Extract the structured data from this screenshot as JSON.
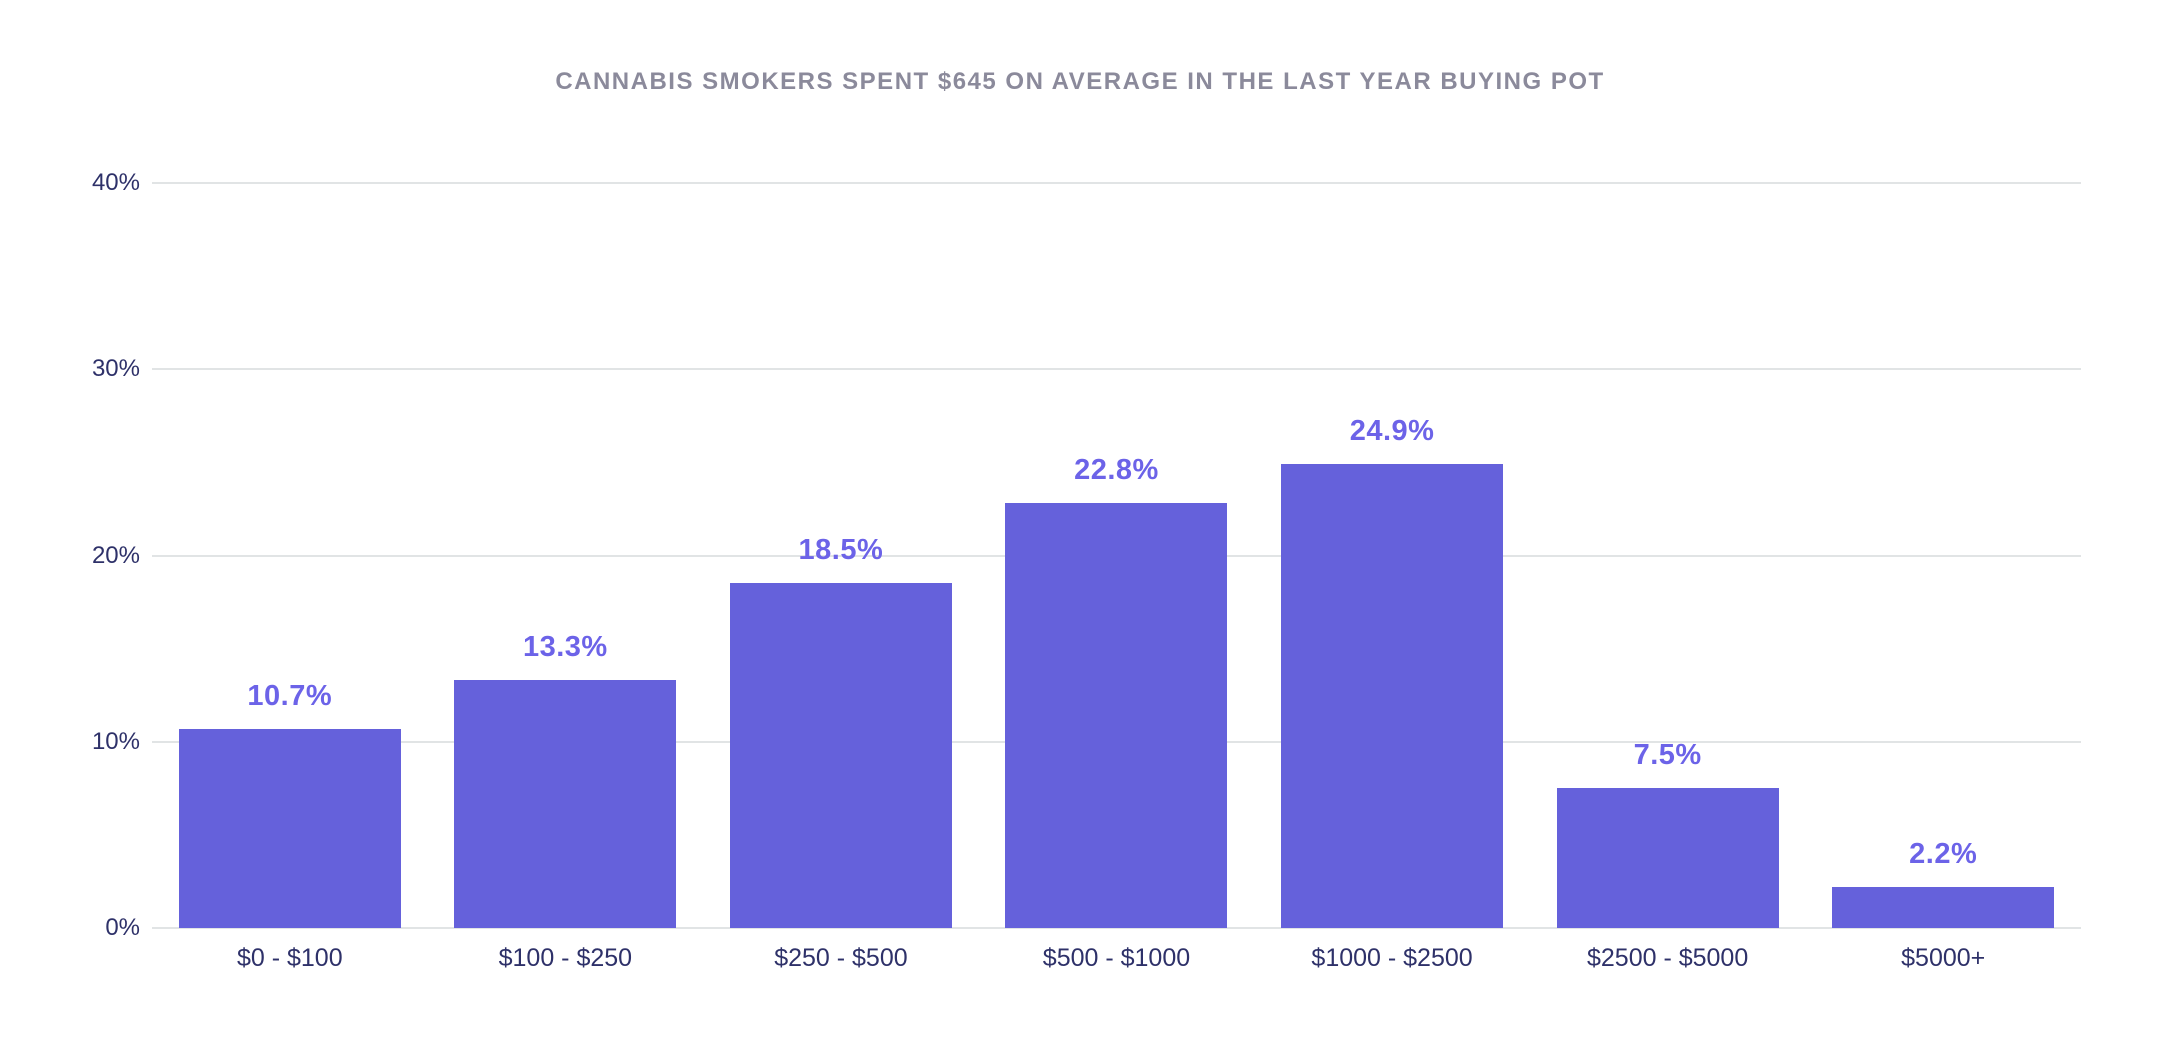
{
  "chart_data": {
    "type": "bar",
    "title": "CANNABIS SMOKERS SPENT $645 ON AVERAGE IN THE LAST YEAR BUYING POT",
    "categories": [
      "$0 - $100",
      "$100 - $250",
      "$250 - $500",
      "$500 - $1000",
      "$1000 - $2500",
      "$2500 - $5000",
      "$5000+"
    ],
    "values": [
      10.7,
      13.3,
      18.5,
      22.8,
      24.9,
      7.5,
      2.2
    ],
    "value_labels": [
      "10.7%",
      "13.3%",
      "18.5%",
      "22.8%",
      "24.9%",
      "7.5%",
      "2.2%"
    ],
    "xlabel": "",
    "ylabel": "",
    "ylim": [
      0,
      40
    ],
    "y_ticks": [
      {
        "value": 0,
        "label": "0%"
      },
      {
        "value": 10,
        "label": "10%"
      },
      {
        "value": 20,
        "label": "20%"
      },
      {
        "value": 30,
        "label": "30%"
      },
      {
        "value": 40,
        "label": "40%"
      }
    ],
    "grid": "horizontal",
    "legend": "none",
    "colors": {
      "bar": "#6561db",
      "value_label": "#6c63e8",
      "axis_text": "#2e3169",
      "title_text": "#8b8a9b",
      "gridline": "#e1e4e5",
      "background": "#ffffff"
    }
  }
}
